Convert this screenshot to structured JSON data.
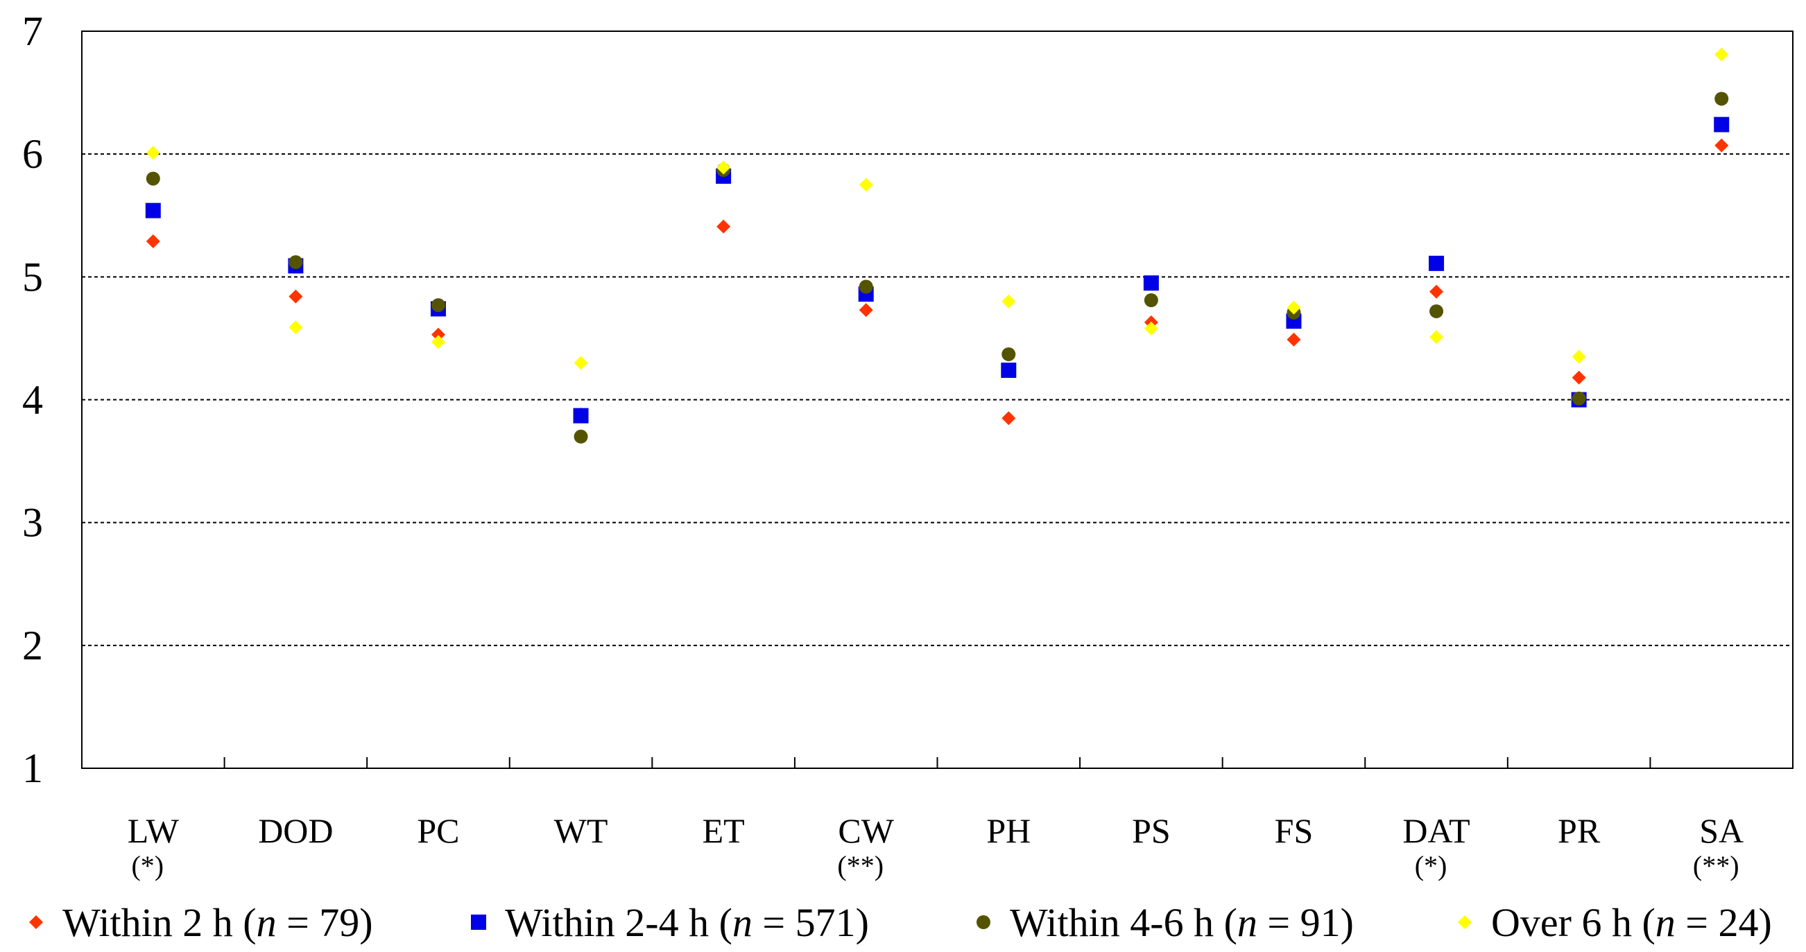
{
  "chart_data": {
    "type": "scatter",
    "title": "",
    "xlabel": "",
    "ylabel": "",
    "ylim": [
      1,
      7
    ],
    "yticks": [
      1,
      2,
      3,
      4,
      5,
      6,
      7
    ],
    "grid": true,
    "legend_position": "bottom",
    "categories": [
      "LW",
      "DOD",
      "PC",
      "WT",
      "ET",
      "CW",
      "PH",
      "PS",
      "FS",
      "DAT",
      "PR",
      "SA"
    ],
    "significance": [
      "(*)",
      "",
      "",
      "",
      "",
      "(**)",
      "",
      "",
      "",
      "(*)",
      "",
      "(**)"
    ],
    "series": [
      {
        "name": "Within 2 h",
        "n_label": "n",
        "n_value": "79",
        "marker": "diamond",
        "color": "#FF3300",
        "values": [
          5.29,
          4.84,
          4.53,
          3.88,
          5.41,
          4.73,
          3.85,
          4.63,
          4.49,
          4.88,
          4.18,
          6.07
        ]
      },
      {
        "name": "Within 2-4 h",
        "n_label": "n",
        "n_value": "571",
        "marker": "square",
        "color": "#0000E6",
        "values": [
          5.54,
          5.09,
          4.74,
          3.87,
          5.82,
          4.86,
          4.24,
          4.95,
          4.64,
          5.11,
          4.0,
          6.24
        ]
      },
      {
        "name": "Within 4-6 h",
        "n_label": "n",
        "n_value": "91",
        "marker": "circle",
        "color": "#545400",
        "values": [
          5.8,
          5.12,
          4.77,
          3.7,
          5.87,
          4.92,
          4.37,
          4.81,
          4.71,
          4.72,
          4.01,
          6.45
        ]
      },
      {
        "name": "Over 6 h",
        "n_label": "n",
        "n_value": "24",
        "marker": "diamond",
        "color": "#FFFF00",
        "values": [
          6.01,
          4.59,
          4.47,
          4.3,
          5.89,
          5.75,
          4.8,
          4.58,
          4.75,
          4.51,
          4.35,
          6.81
        ]
      }
    ]
  }
}
